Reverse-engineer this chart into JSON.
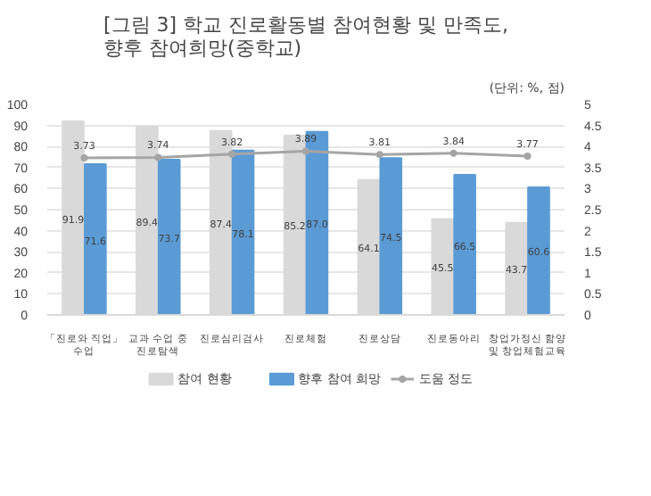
{
  "chart_data": {
    "type": "bar",
    "title": "[그림 3] 학교 진로활동별 참여현황 및 만족도,\n향후 참여희망(중학교)",
    "annotations": [
      "(단위: %, 점)"
    ],
    "categories": [
      "「진로와 직업」\n수업",
      "교과 수업 중\n진로탐색",
      "진로심리검사",
      "진로체험",
      "진로상담",
      "진로동아리",
      "창업가정신 함양\n및 창업체험교육"
    ],
    "series": [
      {
        "name": "참여 현황",
        "color": "#d9d9d9",
        "values": [
          91.9,
          89.4,
          87.4,
          85.2,
          64.1,
          45.5,
          43.7
        ],
        "value_labels": [
          "91.9",
          "89.4",
          "87.4",
          "85.2",
          "64.1",
          "45.5",
          "43.7"
        ]
      },
      {
        "name": "향후 참여 희망",
        "color": "#5b9bd5",
        "values": [
          71.6,
          73.7,
          78.1,
          87.0,
          74.5,
          66.5,
          60.6
        ],
        "value_labels": [
          "71.6",
          "73.7",
          "78.1",
          "87.0",
          "74.5",
          "66.5",
          "60.6"
        ]
      },
      {
        "name": "도움 정도",
        "type": "line",
        "axis": "y2",
        "marker": "circle",
        "color": "#a5a5a5",
        "values": [
          3.73,
          3.74,
          3.82,
          3.89,
          3.81,
          3.84,
          3.77
        ],
        "value_labels": [
          "3.73",
          "3.74",
          "3.82",
          "3.89",
          "3.81",
          "3.84",
          "3.77"
        ]
      }
    ],
    "ylim": [
      0,
      100
    ],
    "yticks": [
      0,
      10,
      20,
      30,
      40,
      50,
      60,
      70,
      80,
      90,
      100
    ],
    "y2lim": [
      0,
      5
    ],
    "y2ticks": [
      0,
      0.5,
      1,
      1.5,
      2,
      2.5,
      3,
      3.5,
      4,
      4.5,
      5
    ],
    "data_labels": true,
    "grid": "y",
    "legend": "bottom"
  }
}
